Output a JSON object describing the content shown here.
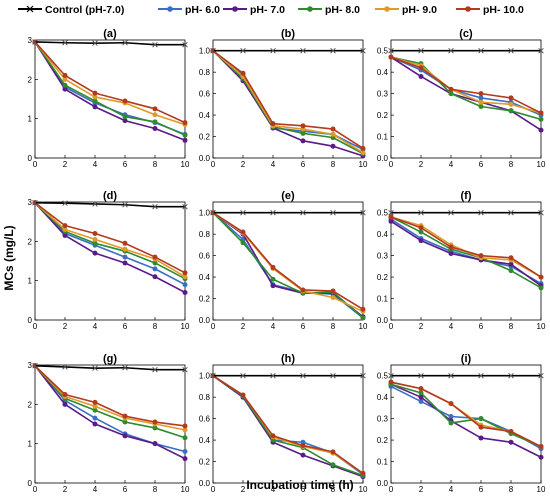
{
  "chart_data": {
    "type": "line",
    "ylabel": "MCs (mg/L)",
    "xlabel": "Incubation time (h)",
    "x": [
      0,
      2,
      4,
      6,
      8,
      10
    ],
    "xlim": [
      0,
      10
    ],
    "xticks": [
      0,
      2,
      4,
      6,
      8,
      10
    ],
    "legend_position": "top",
    "series_styles": [
      {
        "name": "Control (pH-7.0)",
        "color": "#000000",
        "marker": "x"
      },
      {
        "name": "pH- 6.0",
        "color": "#3a6fc4",
        "marker": "circle"
      },
      {
        "name": "pH- 7.0",
        "color": "#5a1a8a",
        "marker": "circle"
      },
      {
        "name": "pH- 8.0",
        "color": "#2e8b2e",
        "marker": "circle"
      },
      {
        "name": "pH- 9.0",
        "color": "#e09a2a",
        "marker": "circle"
      },
      {
        "name": "pH- 10.0",
        "color": "#b23a1e",
        "marker": "circle"
      }
    ],
    "panels": [
      {
        "label": "(a)",
        "ylim": [
          0,
          3
        ],
        "yticks": [
          "0",
          "1",
          "2",
          "3"
        ],
        "series": [
          [
            2.95,
            2.93,
            2.92,
            2.93,
            2.88,
            2.88
          ],
          [
            2.95,
            1.8,
            1.4,
            1.1,
            0.9,
            0.6
          ],
          [
            2.95,
            1.75,
            1.3,
            0.95,
            0.75,
            0.45
          ],
          [
            2.95,
            1.85,
            1.45,
            1.05,
            0.92,
            0.58
          ],
          [
            2.95,
            2.0,
            1.55,
            1.4,
            1.1,
            0.85
          ],
          [
            2.95,
            2.1,
            1.65,
            1.45,
            1.25,
            0.9
          ]
        ]
      },
      {
        "label": "(b)",
        "ylim": [
          0,
          1.1
        ],
        "yticks": [
          "0.0",
          "0.2",
          "0.4",
          "0.6",
          "0.8",
          "1.0"
        ],
        "series": [
          [
            1.0,
            1.0,
            1.0,
            1.0,
            1.0,
            1.0
          ],
          [
            1.0,
            0.78,
            0.28,
            0.25,
            0.22,
            0.08
          ],
          [
            1.0,
            0.72,
            0.28,
            0.16,
            0.11,
            0.02
          ],
          [
            1.0,
            0.74,
            0.29,
            0.23,
            0.19,
            0.04
          ],
          [
            1.0,
            0.76,
            0.3,
            0.27,
            0.22,
            0.05
          ],
          [
            1.0,
            0.79,
            0.32,
            0.3,
            0.27,
            0.09
          ]
        ]
      },
      {
        "label": "(c)",
        "ylim": [
          0,
          0.55
        ],
        "yticks": [
          "0.0",
          "0.1",
          "0.2",
          "0.3",
          "0.4",
          "0.5"
        ],
        "series": [
          [
            0.5,
            0.5,
            0.5,
            0.5,
            0.5,
            0.5
          ],
          [
            0.47,
            0.41,
            0.32,
            0.28,
            0.26,
            0.2
          ],
          [
            0.47,
            0.38,
            0.3,
            0.26,
            0.22,
            0.13
          ],
          [
            0.47,
            0.44,
            0.3,
            0.24,
            0.22,
            0.18
          ],
          [
            0.47,
            0.43,
            0.32,
            0.26,
            0.25,
            0.21
          ],
          [
            0.47,
            0.42,
            0.32,
            0.3,
            0.28,
            0.21
          ]
        ]
      },
      {
        "label": "(d)",
        "ylim": [
          0,
          3
        ],
        "yticks": [
          "0",
          "1",
          "2",
          "3"
        ],
        "series": [
          [
            2.98,
            2.97,
            2.95,
            2.93,
            2.88,
            2.88
          ],
          [
            2.98,
            2.2,
            1.9,
            1.6,
            1.3,
            0.9
          ],
          [
            2.98,
            2.15,
            1.7,
            1.45,
            1.1,
            0.7
          ],
          [
            2.98,
            2.25,
            1.95,
            1.75,
            1.45,
            1.05
          ],
          [
            2.98,
            2.3,
            2.05,
            1.8,
            1.55,
            1.1
          ],
          [
            2.98,
            2.4,
            2.2,
            1.95,
            1.6,
            1.2
          ]
        ]
      },
      {
        "label": "(e)",
        "ylim": [
          0,
          1.1
        ],
        "yticks": [
          "0.0",
          "0.2",
          "0.4",
          "0.6",
          "0.8",
          "1.0"
        ],
        "series": [
          [
            1.0,
            1.0,
            1.0,
            1.0,
            1.0,
            1.0
          ],
          [
            1.0,
            0.75,
            0.33,
            0.26,
            0.24,
            0.02
          ],
          [
            1.0,
            0.8,
            0.32,
            0.25,
            0.25,
            0.03
          ],
          [
            1.0,
            0.72,
            0.38,
            0.25,
            0.26,
            0.02
          ],
          [
            1.0,
            0.81,
            0.48,
            0.27,
            0.21,
            0.08
          ],
          [
            1.0,
            0.82,
            0.49,
            0.28,
            0.27,
            0.1
          ]
        ]
      },
      {
        "label": "(f)",
        "ylim": [
          0,
          0.55
        ],
        "yticks": [
          "0.0",
          "0.1",
          "0.2",
          "0.3",
          "0.4",
          "0.5"
        ],
        "series": [
          [
            0.5,
            0.5,
            0.5,
            0.5,
            0.5,
            0.5
          ],
          [
            0.47,
            0.38,
            0.32,
            0.28,
            0.25,
            0.17
          ],
          [
            0.46,
            0.37,
            0.31,
            0.28,
            0.26,
            0.16
          ],
          [
            0.48,
            0.41,
            0.33,
            0.29,
            0.23,
            0.15
          ],
          [
            0.48,
            0.44,
            0.35,
            0.29,
            0.28,
            0.2
          ],
          [
            0.48,
            0.43,
            0.34,
            0.3,
            0.29,
            0.2
          ]
        ]
      },
      {
        "label": "(g)",
        "ylim": [
          0,
          3
        ],
        "yticks": [
          "0",
          "1",
          "2",
          "3"
        ],
        "series": [
          [
            2.98,
            2.95,
            2.92,
            2.93,
            2.88,
            2.88
          ],
          [
            2.98,
            2.1,
            1.65,
            1.25,
            1.0,
            0.8
          ],
          [
            2.98,
            2.0,
            1.5,
            1.2,
            1.0,
            0.62
          ],
          [
            2.98,
            2.15,
            1.85,
            1.55,
            1.4,
            1.15
          ],
          [
            2.98,
            2.2,
            1.95,
            1.65,
            1.5,
            1.35
          ],
          [
            2.98,
            2.25,
            2.05,
            1.7,
            1.55,
            1.45
          ]
        ]
      },
      {
        "label": "(h)",
        "ylim": [
          0,
          1.1
        ],
        "yticks": [
          "0.0",
          "0.2",
          "0.4",
          "0.6",
          "0.8",
          "1.0"
        ],
        "series": [
          [
            1.0,
            1.0,
            1.0,
            1.0,
            1.0,
            1.0
          ],
          [
            1.0,
            0.8,
            0.4,
            0.38,
            0.28,
            0.08
          ],
          [
            1.0,
            0.8,
            0.38,
            0.26,
            0.16,
            0.06
          ],
          [
            1.0,
            0.81,
            0.4,
            0.33,
            0.17,
            0.07
          ],
          [
            1.0,
            0.82,
            0.43,
            0.34,
            0.28,
            0.09
          ],
          [
            1.0,
            0.82,
            0.44,
            0.35,
            0.29,
            0.09
          ]
        ]
      },
      {
        "label": "(i)",
        "ylim": [
          0,
          0.55
        ],
        "yticks": [
          "0.0",
          "0.1",
          "0.2",
          "0.3",
          "0.4",
          "0.5"
        ],
        "series": [
          [
            0.5,
            0.5,
            0.5,
            0.5,
            0.5,
            0.5
          ],
          [
            0.45,
            0.38,
            0.31,
            0.3,
            0.24,
            0.16
          ],
          [
            0.46,
            0.4,
            0.29,
            0.21,
            0.19,
            0.12
          ],
          [
            0.46,
            0.42,
            0.28,
            0.3,
            0.23,
            0.17
          ],
          [
            0.47,
            0.44,
            0.37,
            0.27,
            0.24,
            0.17
          ],
          [
            0.47,
            0.44,
            0.37,
            0.26,
            0.24,
            0.17
          ]
        ]
      }
    ]
  }
}
